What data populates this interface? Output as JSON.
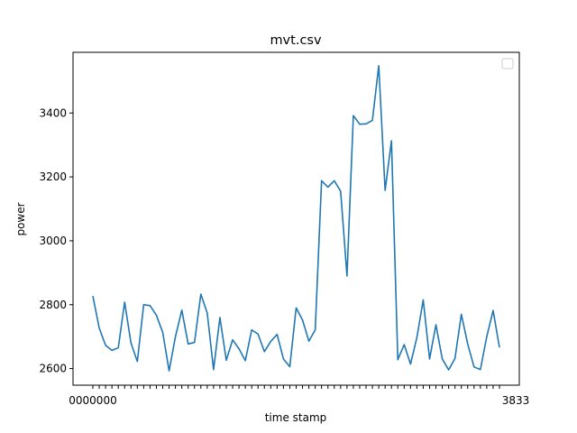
{
  "chart_data": {
    "type": "line",
    "title": "mvt.csv",
    "xlabel": "time stamp",
    "ylabel": "power",
    "x_tick_label_first": "0000000",
    "x_tick_label_last": "3833",
    "yticks": [
      2600,
      2800,
      3000,
      3200,
      3400
    ],
    "ylim": [
      2548,
      3590
    ],
    "grid": false,
    "legend": "top-right",
    "series": [
      {
        "values": [
          2827,
          2727,
          2673,
          2657,
          2665,
          2808,
          2680,
          2622,
          2800,
          2797,
          2767,
          2713,
          2593,
          2700,
          2783,
          2677,
          2682,
          2833,
          2774,
          2597,
          2760,
          2626,
          2690,
          2662,
          2625,
          2721,
          2708,
          2653,
          2685,
          2707,
          2630,
          2606,
          2790,
          2752,
          2686,
          2721,
          3188,
          3168,
          3188,
          3155,
          2890,
          3392,
          3365,
          3366,
          3377,
          3548,
          3158,
          3313,
          2628,
          2675,
          2614,
          2697,
          2815,
          2630,
          2737,
          2630,
          2596,
          2632,
          2770,
          2677,
          2605,
          2597,
          2700,
          2782,
          2666
        ],
        "color": "#1f77b4"
      }
    ]
  }
}
